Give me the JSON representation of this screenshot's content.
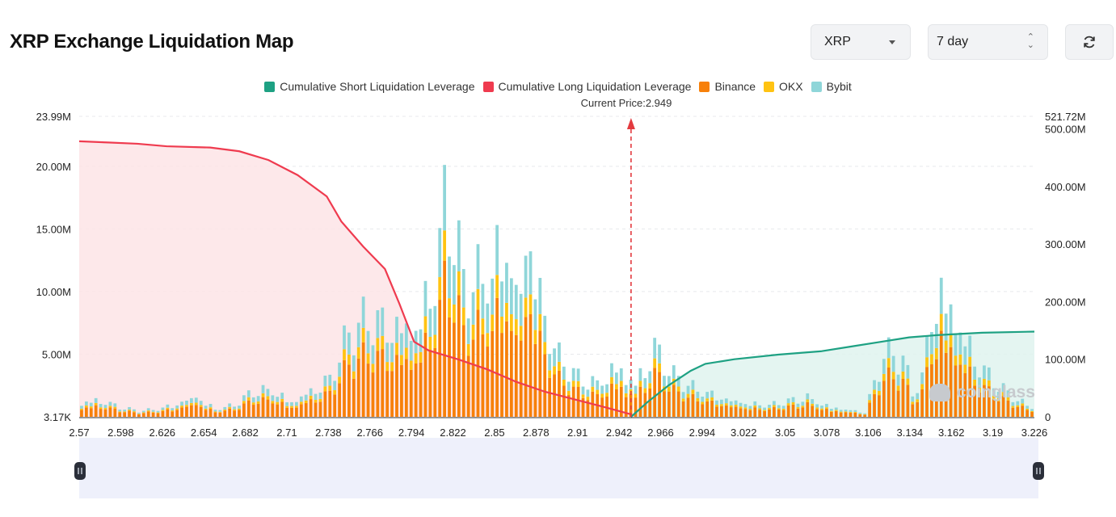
{
  "header": {
    "title": "XRP Exchange Liquidation Map",
    "coin_select": "XRP",
    "range_select": "7 day",
    "refresh_icon": "refresh-icon"
  },
  "chart_data": {
    "type": "bar",
    "current_price_label": "Current Price:2.949",
    "current_price": 2.949,
    "legend": [
      {
        "name": "Cumulative Short Liquidation Leverage",
        "color": "#1ea183"
      },
      {
        "name": "Cumulative Long Liquidation Leverage",
        "color": "#ef3b4f"
      },
      {
        "name": "Binance",
        "color": "#f7800a"
      },
      {
        "name": "OKX",
        "color": "#ffc312"
      },
      {
        "name": "Bybit",
        "color": "#8fd6d9"
      }
    ],
    "x_ticks": [
      "2.57",
      "2.598",
      "2.626",
      "2.654",
      "2.682",
      "2.71",
      "2.738",
      "2.766",
      "2.794",
      "2.822",
      "2.85",
      "2.878",
      "2.91",
      "2.942",
      "2.966",
      "2.994",
      "3.022",
      "3.05",
      "3.078",
      "3.106",
      "3.134",
      "3.162",
      "3.19",
      "3.226"
    ],
    "y_left_ticks": [
      "23.99M",
      "20.00M",
      "15.00M",
      "10.00M",
      "5.00M",
      "3.17K"
    ],
    "y_left_values": [
      23.99,
      20,
      15,
      10,
      5,
      0
    ],
    "y_left_max": 23.99,
    "y_right_ticks": [
      "521.72M",
      "500.00M",
      "400.00M",
      "300.00M",
      "200.00M",
      "100.00M",
      "0"
    ],
    "y_right_values": [
      521.72,
      500,
      400,
      300,
      200,
      100,
      0
    ],
    "y_right_max": 521.72,
    "x_range": [
      2.57,
      3.226
    ],
    "bar_count": 200,
    "bars_total_keypoints": [
      [
        0,
        1.6
      ],
      [
        4,
        1.8
      ],
      [
        8,
        1.0
      ],
      [
        12,
        0.6
      ],
      [
        16,
        0.8
      ],
      [
        20,
        1.4
      ],
      [
        24,
        2.2
      ],
      [
        28,
        0.8
      ],
      [
        32,
        1.2
      ],
      [
        36,
        2.6
      ],
      [
        40,
        2.8
      ],
      [
        44,
        1.6
      ],
      [
        48,
        2.8
      ],
      [
        52,
        4.0
      ],
      [
        56,
        8.5
      ],
      [
        60,
        10.2
      ],
      [
        64,
        10.0
      ],
      [
        68,
        9.8
      ],
      [
        70,
        9.6
      ],
      [
        72,
        12.2
      ],
      [
        74,
        14.8
      ],
      [
        76,
        21.4
      ],
      [
        78,
        19.8
      ],
      [
        80,
        13.2
      ],
      [
        82,
        14.5
      ],
      [
        84,
        14.0
      ],
      [
        86,
        15.5
      ],
      [
        88,
        19.2
      ],
      [
        90,
        16.0
      ],
      [
        92,
        13.2
      ],
      [
        94,
        20.6
      ],
      [
        96,
        12.2
      ],
      [
        98,
        8.6
      ],
      [
        100,
        6.0
      ],
      [
        104,
        4.0
      ],
      [
        108,
        3.5
      ],
      [
        112,
        5.6
      ],
      [
        116,
        3.6
      ],
      [
        120,
        7.2
      ],
      [
        124,
        4.2
      ],
      [
        128,
        3.0
      ],
      [
        132,
        2.4
      ],
      [
        136,
        1.8
      ],
      [
        140,
        1.4
      ],
      [
        144,
        1.2
      ],
      [
        148,
        1.6
      ],
      [
        152,
        2.0
      ],
      [
        156,
        1.2
      ],
      [
        160,
        0.8
      ],
      [
        164,
        0.5
      ],
      [
        168,
        6.5
      ],
      [
        172,
        6.0
      ],
      [
        174,
        2.5
      ],
      [
        176,
        4.2
      ],
      [
        178,
        11.0
      ],
      [
        180,
        13.9
      ],
      [
        182,
        11.5
      ],
      [
        184,
        9.6
      ],
      [
        186,
        7.2
      ],
      [
        188,
        5.4
      ],
      [
        190,
        4.2
      ],
      [
        192,
        3.2
      ],
      [
        194,
        2.4
      ],
      [
        196,
        1.8
      ],
      [
        198,
        1.2
      ],
      [
        199,
        1.0
      ]
    ],
    "cumulative_long_keypoints": [
      [
        2.57,
        22.0
      ],
      [
        2.59,
        21.9
      ],
      [
        2.61,
        21.8
      ],
      [
        2.63,
        21.6
      ],
      [
        2.66,
        21.5
      ],
      [
        2.68,
        21.2
      ],
      [
        2.7,
        20.5
      ],
      [
        2.72,
        19.3
      ],
      [
        2.74,
        17.6
      ],
      [
        2.75,
        15.6
      ],
      [
        2.765,
        13.6
      ],
      [
        2.78,
        11.8
      ],
      [
        2.79,
        9.0
      ],
      [
        2.8,
        6.0
      ],
      [
        2.81,
        5.3
      ],
      [
        2.83,
        4.6
      ],
      [
        2.85,
        3.8
      ],
      [
        2.87,
        2.8
      ],
      [
        2.89,
        2.0
      ],
      [
        2.91,
        1.4
      ],
      [
        2.93,
        0.8
      ],
      [
        2.949,
        0.2
      ]
    ],
    "cumulative_short_keypoints": [
      [
        2.949,
        0
      ],
      [
        2.96,
        25
      ],
      [
        2.975,
        55
      ],
      [
        2.99,
        80
      ],
      [
        3.0,
        92
      ],
      [
        3.02,
        100
      ],
      [
        3.05,
        108
      ],
      [
        3.08,
        114
      ],
      [
        3.1,
        122
      ],
      [
        3.12,
        130
      ],
      [
        3.14,
        138
      ],
      [
        3.16,
        142
      ],
      [
        3.19,
        146
      ],
      [
        3.226,
        148
      ]
    ]
  },
  "watermark": "coinglass"
}
